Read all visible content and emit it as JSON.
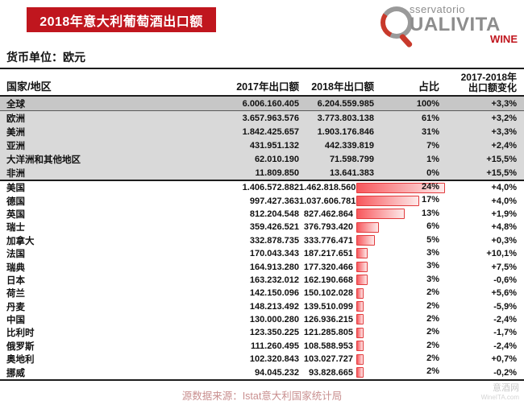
{
  "banner": {
    "title": "2018年意大利葡萄酒出口额"
  },
  "logo": {
    "osservatorio": "sservatorio",
    "qualivita": "UALIVITA",
    "wine": "WINE"
  },
  "currency": {
    "label": "货币单位：欧元"
  },
  "header": {
    "country": "国家/地区",
    "y2017": "2017年出口额",
    "y2018": "2018年出口额",
    "share": "占比",
    "change_line1": "2017-2018年",
    "change_line2": "出口额变化"
  },
  "colors": {
    "banner_red": "#c0161e",
    "bar_gradient_start": "#f8575c",
    "bar_gradient_end": "#fdeaea",
    "bar_border": "#e23b3d",
    "region_row_bg": "#d9d9d9",
    "global_row_bg": "#c7c7c7",
    "source_text": "#c98f8f"
  },
  "chart_data": {
    "type": "table",
    "title": "2018年意大利葡萄酒出口额",
    "currency_unit": "欧元",
    "columns": [
      "国家/地区",
      "2017年出口额",
      "2018年出口额",
      "占比",
      "2017-2018年出口额变化"
    ],
    "bar_column": "占比",
    "bar_style": "red-gradient-databar",
    "region_rows": [
      {
        "name": "全球",
        "y2017": "6.006.160.405",
        "y2018": "6.204.559.985",
        "share": "100%",
        "change": "+3,3%"
      },
      {
        "name": "欧洲",
        "y2017": "3.657.963.576",
        "y2018": "3.773.803.138",
        "share": "61%",
        "change": "+3,2%"
      },
      {
        "name": "美洲",
        "y2017": "1.842.425.657",
        "y2018": "1.903.176.846",
        "share": "31%",
        "change": "+3,3%"
      },
      {
        "name": "亚洲",
        "y2017": "431.951.132",
        "y2018": "442.339.819",
        "share": "7%",
        "change": "+2,4%"
      },
      {
        "name": "大洋洲和其他地区",
        "y2017": "62.010.190",
        "y2018": "71.598.799",
        "share": "1%",
        "change": "+15,5%"
      },
      {
        "name": "非洲",
        "y2017": "11.809.850",
        "y2018": "13.641.383",
        "share": "0%",
        "change": "+15,5%"
      }
    ],
    "country_rows": [
      {
        "name": "美国",
        "y2017": "1.406.572.882",
        "y2018": "1.462.818.560",
        "share": "24%",
        "share_pct": 24,
        "change": "+4,0%"
      },
      {
        "name": "德国",
        "y2017": "997.427.363",
        "y2018": "1.037.606.781",
        "share": "17%",
        "share_pct": 17,
        "change": "+4,0%"
      },
      {
        "name": "英国",
        "y2017": "812.204.548",
        "y2018": "827.462.864",
        "share": "13%",
        "share_pct": 13,
        "change": "+1,9%"
      },
      {
        "name": "瑞士",
        "y2017": "359.426.521",
        "y2018": "376.793.420",
        "share": "6%",
        "share_pct": 6,
        "change": "+4,8%"
      },
      {
        "name": "加拿大",
        "y2017": "332.878.735",
        "y2018": "333.776.471",
        "share": "5%",
        "share_pct": 5,
        "change": "+0,3%"
      },
      {
        "name": "法国",
        "y2017": "170.043.343",
        "y2018": "187.217.651",
        "share": "3%",
        "share_pct": 3,
        "change": "+10,1%"
      },
      {
        "name": "瑞典",
        "y2017": "164.913.280",
        "y2018": "177.320.466",
        "share": "3%",
        "share_pct": 3,
        "change": "+7,5%"
      },
      {
        "name": "日本",
        "y2017": "163.232.012",
        "y2018": "162.190.668",
        "share": "3%",
        "share_pct": 3,
        "change": "-0,6%"
      },
      {
        "name": "荷兰",
        "y2017": "142.150.096",
        "y2018": "150.102.028",
        "share": "2%",
        "share_pct": 2,
        "change": "+5,6%"
      },
      {
        "name": "丹麦",
        "y2017": "148.213.492",
        "y2018": "139.510.099",
        "share": "2%",
        "share_pct": 2,
        "change": "-5,9%"
      },
      {
        "name": "中国",
        "y2017": "130.000.280",
        "y2018": "126.936.215",
        "share": "2%",
        "share_pct": 2,
        "change": "-2,4%"
      },
      {
        "name": "比利时",
        "y2017": "123.350.225",
        "y2018": "121.285.805",
        "share": "2%",
        "share_pct": 2,
        "change": "-1,7%"
      },
      {
        "name": "俄罗斯",
        "y2017": "111.260.495",
        "y2018": "108.588.953",
        "share": "2%",
        "share_pct": 2,
        "change": "-2,4%"
      },
      {
        "name": "奥地利",
        "y2017": "102.320.843",
        "y2018": "103.027.727",
        "share": "2%",
        "share_pct": 2,
        "change": "+0,7%"
      },
      {
        "name": "挪威",
        "y2017": "94.045.232",
        "y2018": "93.828.665",
        "share": "2%",
        "share_pct": 2,
        "change": "-0,2%"
      }
    ]
  },
  "footer": {
    "source": "源数据来源：Istat意大利国家统计局",
    "watermark_cn": "意酒网",
    "watermark_en": "WineITA.com"
  }
}
